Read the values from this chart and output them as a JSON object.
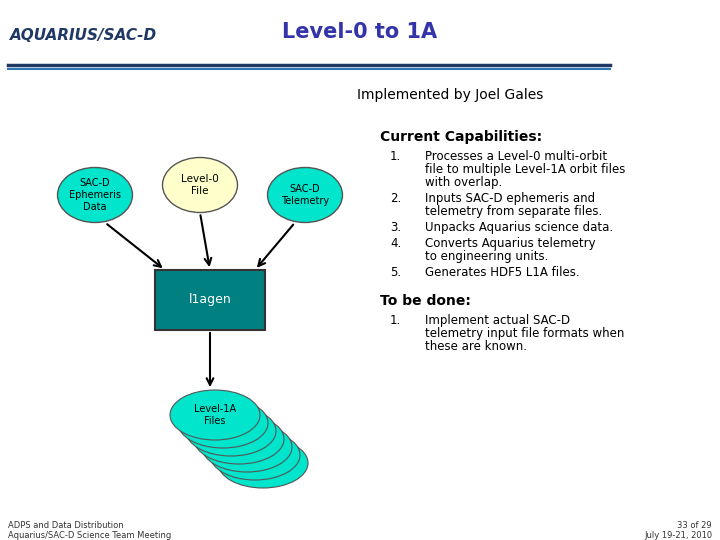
{
  "title": "Level-0 to 1A",
  "subtitle": "Implemented by Joel Gales",
  "background_color": "#ffffff",
  "header_line_color1": "#1f3864",
  "header_line_color2": "#2e75b6",
  "aquarius_text": "AQUARIUS/SAC-D",
  "aquarius_color": "#1f3864",
  "ellipse_left_label": "SAC-D\nEphemeris\nData",
  "ellipse_left_fill": "#00e5cc",
  "ellipse_mid_label": "Level-0\nFile",
  "ellipse_mid_fill": "#ffffcc",
  "ellipse_right_label": "SAC-D\nTelemetry",
  "ellipse_right_fill": "#00e5cc",
  "rect_label": "l1agen",
  "rect_fill": "#008080",
  "stack_label": "Level-1A\nFiles",
  "stack_fill": "#00e5cc",
  "current_cap_title": "Current Capabilities:",
  "cap1": "Processes a Level-0 multi-orbit\nfile to multiple Level-1A orbit files\nwith overlap.",
  "cap2": "Inputs SAC-D ephemeris and\ntelemetry from separate files.",
  "cap3": "Unpacks Aquarius science data.",
  "cap4": "Converts Aquarius telemetry\nto engineering units.",
  "cap5": "Generates HDF5 L1A files.",
  "to_be_done_title": "To be done:",
  "todo1": "Implement actual SAC-D\ntelemetry input file formats when\nthese are known.",
  "footer_left1": "ADPS and Data Distribution",
  "footer_left2": "Aquarius/SAC-D Science Team Meeting",
  "footer_right1": "33 of 29",
  "footer_right2": "July 19-21, 2010"
}
